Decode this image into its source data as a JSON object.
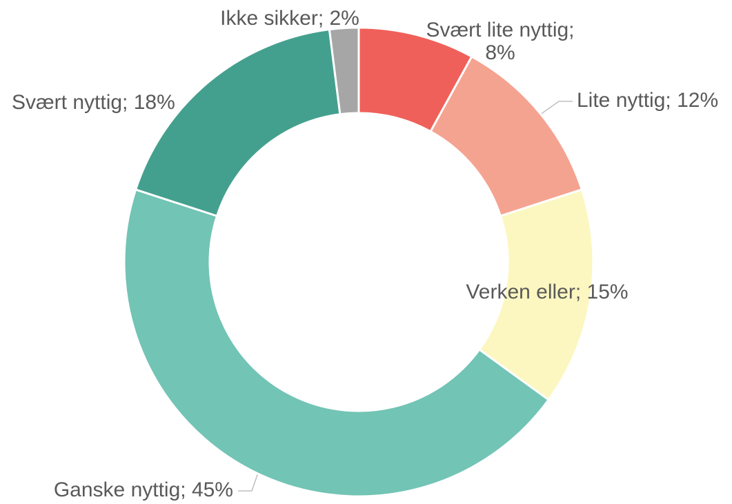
{
  "chart_data": {
    "type": "donut",
    "values": [
      8,
      12,
      15,
      45,
      18,
      2
    ],
    "value_labels": [
      "Svært lite nyttig; 8%",
      "Lite nyttig; 12%",
      "Verken eller; 15%",
      "Ganske nyttig; 45%",
      "Svært nyttig; 18%",
      "Ikke sikker; 2%"
    ],
    "colors": [
      "#f0605a",
      "#f5a391",
      "#fcf7c0",
      "#72c4b5",
      "#44a08e",
      "#a6a6a6"
    ]
  }
}
